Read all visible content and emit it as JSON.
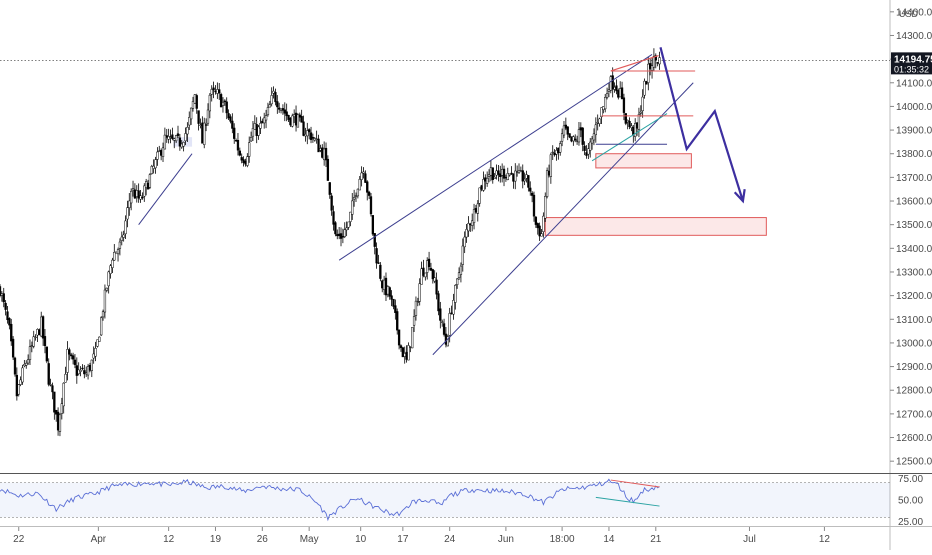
{
  "chart_data": {
    "type": "candlestick",
    "currency": "USD",
    "price_axis": {
      "min": 12450,
      "max": 14450,
      "ticks": [
        12500,
        12600,
        12700,
        12800,
        12900,
        13000,
        13100,
        13200,
        13300,
        13400,
        13500,
        13600,
        13700,
        13800,
        13900,
        14000,
        14100,
        14200,
        14300,
        14400
      ],
      "tick_labels": [
        "12500.00",
        "12600.00",
        "12700.00",
        "12800.00",
        "12900.00",
        "13000.00",
        "13100.00",
        "13200.00",
        "13300.00",
        "13400.00",
        "13500.00",
        "13600.00",
        "13700.00",
        "13800.00",
        "13900.00",
        "14000.00",
        "14100.00",
        "14200.00",
        "14300.00",
        "14400.00"
      ]
    },
    "last_price": {
      "value": 14194.75,
      "label": "14194.75",
      "countdown": "01:35:32"
    },
    "time_axis": {
      "min": 0,
      "max": 95,
      "ticks": [
        {
          "label": "22",
          "t": 2
        },
        {
          "label": "Apr",
          "t": 10.5
        },
        {
          "label": "12",
          "t": 18
        },
        {
          "label": "19",
          "t": 23
        },
        {
          "label": "26",
          "t": 28
        },
        {
          "label": "May",
          "t": 33
        },
        {
          "label": "10",
          "t": 38.5
        },
        {
          "label": "17",
          "t": 43
        },
        {
          "label": "24",
          "t": 48
        },
        {
          "label": "Jun",
          "t": 54
        },
        {
          "label": "18:00",
          "t": 60
        },
        {
          "label": "14",
          "t": 65
        },
        {
          "label": "21",
          "t": 70
        },
        {
          "label": "Jul",
          "t": 80
        },
        {
          "label": "12",
          "t": 88
        }
      ]
    },
    "price_path": [
      [
        0,
        13230
      ],
      [
        1,
        13050
      ],
      [
        1.8,
        12780
      ],
      [
        2.6,
        12900
      ],
      [
        3.6,
        13000
      ],
      [
        4.4,
        13080
      ],
      [
        5.2,
        12850
      ],
      [
        6.2,
        12650
      ],
      [
        7.2,
        12950
      ],
      [
        8.2,
        12880
      ],
      [
        9.2,
        12870
      ],
      [
        10.2,
        12950
      ],
      [
        11,
        13150
      ],
      [
        12,
        13370
      ],
      [
        13,
        13420
      ],
      [
        14,
        13650
      ],
      [
        15,
        13600
      ],
      [
        16,
        13700
      ],
      [
        17,
        13800
      ],
      [
        17.6,
        13860
      ],
      [
        18.4,
        13850
      ],
      [
        19.2,
        13850
      ],
      [
        20,
        13900
      ],
      [
        20.8,
        14050
      ],
      [
        21.6,
        13850
      ],
      [
        22.4,
        14050
      ],
      [
        23.2,
        14050
      ],
      [
        24,
        14000
      ],
      [
        24.8,
        13900
      ],
      [
        25.6,
        13800
      ],
      [
        26.2,
        13780
      ],
      [
        27,
        13900
      ],
      [
        27.6,
        13900
      ],
      [
        28.4,
        13950
      ],
      [
        29.2,
        14050
      ],
      [
        30,
        14000
      ],
      [
        30.8,
        13950
      ],
      [
        31.6,
        13950
      ],
      [
        32.4,
        13900
      ],
      [
        33.2,
        13880
      ],
      [
        34,
        13830
      ],
      [
        34.6,
        13800
      ],
      [
        35.2,
        13650
      ],
      [
        35.8,
        13450
      ],
      [
        36.4,
        13450
      ],
      [
        37.2,
        13500
      ],
      [
        38,
        13650
      ],
      [
        38.8,
        13750
      ],
      [
        39.4,
        13600
      ],
      [
        40,
        13400
      ],
      [
        40.8,
        13250
      ],
      [
        41.6,
        13200
      ],
      [
        42.2,
        13100
      ],
      [
        42.8,
        12980
      ],
      [
        43.4,
        12920
      ],
      [
        44.2,
        13100
      ],
      [
        45,
        13300
      ],
      [
        45.8,
        13350
      ],
      [
        46.4,
        13250
      ],
      [
        47,
        13100
      ],
      [
        47.6,
        13000
      ],
      [
        48.2,
        13150
      ],
      [
        48.8,
        13250
      ],
      [
        49.4,
        13400
      ],
      [
        50,
        13500
      ],
      [
        50.6,
        13550
      ],
      [
        51.2,
        13650
      ],
      [
        51.8,
        13700
      ],
      [
        52.4,
        13730
      ],
      [
        53,
        13700
      ],
      [
        53.6,
        13720
      ],
      [
        54.2,
        13720
      ],
      [
        54.8,
        13710
      ],
      [
        55.4,
        13700
      ],
      [
        56,
        13700
      ],
      [
        56.6,
        13650
      ],
      [
        57.2,
        13500
      ],
      [
        57.8,
        13460
      ],
      [
        58.4,
        13700
      ],
      [
        59,
        13800
      ],
      [
        59.6,
        13800
      ],
      [
        60.2,
        13900
      ],
      [
        60.8,
        13850
      ],
      [
        61.4,
        13850
      ],
      [
        62,
        13900
      ],
      [
        62.6,
        13780
      ],
      [
        63.2,
        13850
      ],
      [
        63.8,
        13950
      ],
      [
        64.4,
        14000
      ],
      [
        65,
        14100
      ],
      [
        65.6,
        14100
      ],
      [
        66.2,
        14050
      ],
      [
        66.8,
        13950
      ],
      [
        67.4,
        13900
      ],
      [
        68,
        13900
      ],
      [
        68.6,
        14050
      ],
      [
        69.2,
        14150
      ],
      [
        69.6,
        14190
      ],
      [
        70.2,
        14200
      ],
      [
        70.4,
        14195
      ]
    ],
    "annotations": {
      "arrow_path": [
        [
          70.5,
          14250
        ],
        [
          73.3,
          13820
        ],
        [
          76.3,
          13980
        ],
        [
          79.3,
          13600
        ]
      ],
      "arrow_color": "#3d2fa0",
      "trendlines": [
        {
          "from": [
            36.2,
            13350
          ],
          "to": [
            69.6,
            14220
          ],
          "color": "#3d3f8f"
        },
        {
          "from": [
            46.2,
            12950
          ],
          "to": [
            74,
            14100
          ],
          "color": "#3d3f8f"
        },
        {
          "from": [
            14.8,
            13500
          ],
          "to": [
            20.5,
            13800
          ],
          "color": "#3d3f8f"
        },
        {
          "from": [
            63.2,
            13770
          ],
          "to": [
            71.2,
            13970
          ],
          "color": "#2ba3a3"
        }
      ],
      "horizontal_lines": [
        {
          "t0": 65.2,
          "t1": 74.2,
          "price": 14150,
          "color": "#e05a5a"
        },
        {
          "t0": 64.2,
          "t1": 74,
          "price": 13960,
          "color": "#e05a5a"
        },
        {
          "t0": 63.6,
          "t1": 71.2,
          "price": 13840,
          "color": "#3d3f8f"
        }
      ],
      "zones": [
        {
          "t0": 63.6,
          "t1": 73.8,
          "p_low": 13740,
          "p_high": 13800,
          "color": "#e05a5a"
        },
        {
          "t0": 58.2,
          "t1": 81.8,
          "p_low": 13455,
          "p_high": 13530,
          "color": "#e05a5a"
        }
      ]
    },
    "rsi": {
      "ylim": [
        20,
        80
      ],
      "ticks": [
        25,
        50,
        75
      ],
      "tick_labels": [
        "25.00",
        "50.00",
        "75.00"
      ],
      "band": [
        30,
        70
      ],
      "divergence_lines": [
        {
          "from": [
            65.2,
            73
          ],
          "to": [
            70.4,
            65
          ],
          "color": "#e05a5a"
        },
        {
          "from": [
            63.6,
            53
          ],
          "to": [
            70.4,
            43
          ],
          "color": "#2ba3a3"
        }
      ],
      "values": [
        [
          0,
          63
        ],
        [
          2,
          55
        ],
        [
          4,
          58
        ],
        [
          6,
          40
        ],
        [
          8,
          52
        ],
        [
          10,
          57
        ],
        [
          12,
          66
        ],
        [
          14,
          68
        ],
        [
          16,
          70
        ],
        [
          18,
          67
        ],
        [
          20,
          71
        ],
        [
          22,
          64
        ],
        [
          24,
          66
        ],
        [
          26,
          60
        ],
        [
          28,
          66
        ],
        [
          30,
          63
        ],
        [
          32,
          62
        ],
        [
          34,
          45
        ],
        [
          35,
          30
        ],
        [
          36,
          38
        ],
        [
          38,
          52
        ],
        [
          40,
          42
        ],
        [
          42,
          33
        ],
        [
          43,
          36
        ],
        [
          44,
          48
        ],
        [
          46,
          50
        ],
        [
          47,
          43
        ],
        [
          48,
          55
        ],
        [
          50,
          62
        ],
        [
          52,
          61
        ],
        [
          54,
          60
        ],
        [
          56,
          57
        ],
        [
          58,
          47
        ],
        [
          60,
          62
        ],
        [
          62,
          64
        ],
        [
          64,
          68
        ],
        [
          65,
          72
        ],
        [
          66,
          67
        ],
        [
          67,
          52
        ],
        [
          67.8,
          49
        ],
        [
          68.6,
          61
        ],
        [
          70.4,
          66
        ]
      ]
    }
  }
}
